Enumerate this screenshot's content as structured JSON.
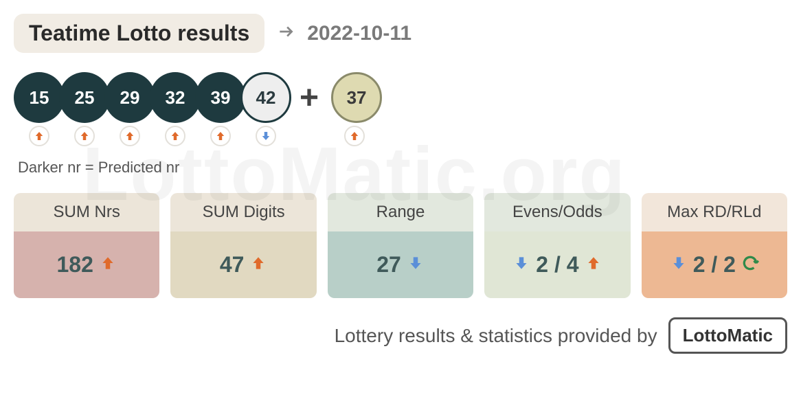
{
  "header": {
    "title": "Teatime Lotto results",
    "date": "2022-10-11"
  },
  "colors": {
    "ball_dark_bg": "#1e3a3f",
    "ball_dark_fg": "#ffffff",
    "ball_light_bg": "#eeeeee",
    "ball_light_border": "#1e3a3f",
    "ball_bonus_bg": "#dedab1",
    "ball_bonus_border": "#8a8a6a",
    "arrow_up": "#e06a2b",
    "arrow_down": "#5b8fd8",
    "cycle": "#2f8a4a"
  },
  "balls": [
    {
      "n": "15",
      "style": "dark",
      "trend": "up"
    },
    {
      "n": "25",
      "style": "dark",
      "trend": "up"
    },
    {
      "n": "29",
      "style": "dark",
      "trend": "up"
    },
    {
      "n": "32",
      "style": "dark",
      "trend": "up"
    },
    {
      "n": "39",
      "style": "dark",
      "trend": "up"
    },
    {
      "n": "42",
      "style": "light",
      "trend": "down"
    }
  ],
  "bonus": {
    "n": "37",
    "style": "bonus",
    "trend": "up"
  },
  "legend": "Darker nr = Predicted nr",
  "stats": [
    {
      "label": "SUM Nrs",
      "head_bg": "#ece5d9",
      "body_bg": "#d6b2ad",
      "segments": [
        {
          "text": "182"
        },
        {
          "icon": "up"
        }
      ]
    },
    {
      "label": "SUM Digits",
      "head_bg": "#ece5d9",
      "body_bg": "#e1d9c1",
      "segments": [
        {
          "text": "47"
        },
        {
          "icon": "up"
        }
      ]
    },
    {
      "label": "Range",
      "head_bg": "#e2e8de",
      "body_bg": "#b8cfc8",
      "segments": [
        {
          "text": "27"
        },
        {
          "icon": "down"
        }
      ]
    },
    {
      "label": "Evens/Odds",
      "head_bg": "#e2e8de",
      "body_bg": "#e0e6d5",
      "segments": [
        {
          "icon": "down"
        },
        {
          "text": "2 / 4"
        },
        {
          "icon": "up"
        }
      ]
    },
    {
      "label": "Max RD/RLd",
      "head_bg": "#f2e6da",
      "body_bg": "#edb893",
      "segments": [
        {
          "icon": "down"
        },
        {
          "text": "2 / 2"
        },
        {
          "icon": "cycle"
        }
      ]
    }
  ],
  "footer": {
    "text": "Lottery results & statistics provided by",
    "button": "LottoMatic"
  },
  "watermark": "LottoMatic.org"
}
